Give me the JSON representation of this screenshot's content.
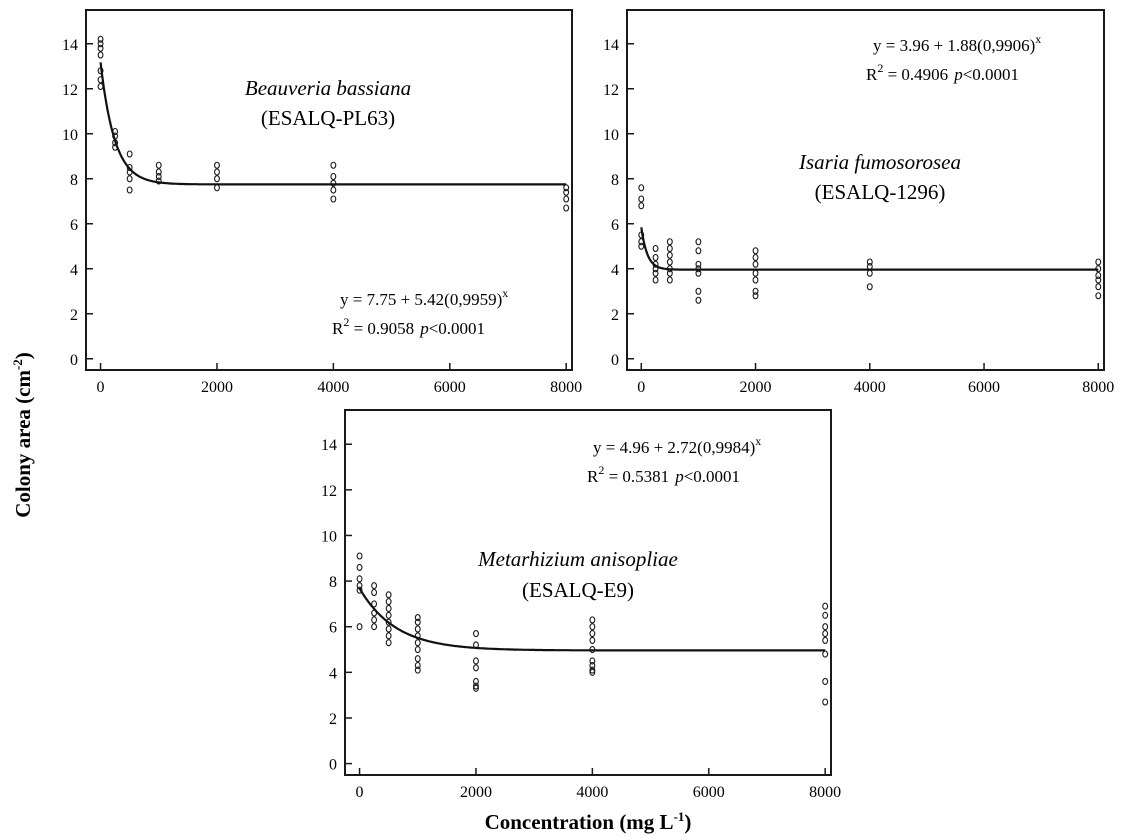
{
  "y_axis_title": "Colony area (cm",
  "y_axis_title_sup": "-2",
  "y_axis_title_end": ")",
  "x_axis_title": "Concentration  (mg L",
  "x_axis_title_sup": "-1",
  "x_axis_title_end": ")",
  "panels": [
    {
      "species": "Beauveria bassiana",
      "isolate": "(ESALQ-PL63)",
      "eq_line1": "y = 7.75 + 5.42(0,9959)",
      "eq_line1_sup": "x",
      "eq_r2_prefix": "R",
      "eq_r2_sup": "2",
      "eq_r2_value": " = 0.9058",
      "eq_p_letter": "p",
      "eq_p_value": "<0.0001"
    },
    {
      "species": "Isaria fumosorosea",
      "isolate": "(ESALQ-1296)",
      "eq_line1": "y = 3.96 + 1.88(0,9906)",
      "eq_line1_sup": "x",
      "eq_r2_prefix": "R",
      "eq_r2_sup": "2",
      "eq_r2_value": " = 0.4906",
      "eq_p_letter": "p",
      "eq_p_value": "<0.0001"
    },
    {
      "species": "Metarhizium anisopliae",
      "isolate": "(ESALQ-E9)",
      "eq_line1": "y = 4.96 + 2.72(0,9984)",
      "eq_line1_sup": "x",
      "eq_r2_prefix": "R",
      "eq_r2_sup": "2",
      "eq_r2_value": " = 0.5381",
      "eq_p_letter": "p",
      "eq_p_value": "<0.0001"
    }
  ],
  "chart_data": [
    {
      "type": "scatter",
      "title": "",
      "xlabel": "Concentration (mg L-1)",
      "ylabel": "Colony area (cm-2)",
      "xlim": [
        -250,
        8100
      ],
      "ylim": [
        -0.5,
        15.5
      ],
      "xticks": [
        0,
        2000,
        4000,
        6000,
        8000
      ],
      "yticks": [
        0,
        2,
        4,
        6,
        8,
        10,
        12,
        14
      ],
      "xtick_labels": [
        "0",
        "2000",
        "4000",
        "6000",
        "8000"
      ],
      "ytick_labels": [
        "0",
        "2",
        "4",
        "6",
        "8",
        "10",
        "12",
        "14"
      ],
      "grid": false,
      "points": [
        [
          0,
          14.2
        ],
        [
          0,
          14.0
        ],
        [
          0,
          13.8
        ],
        [
          0,
          13.5
        ],
        [
          0,
          12.8
        ],
        [
          0,
          12.4
        ],
        [
          0,
          12.1
        ],
        [
          250,
          10.1
        ],
        [
          250,
          9.9
        ],
        [
          250,
          9.6
        ],
        [
          250,
          9.4
        ],
        [
          500,
          9.1
        ],
        [
          500,
          8.5
        ],
        [
          500,
          8.3
        ],
        [
          500,
          8.0
        ],
        [
          500,
          7.5
        ],
        [
          1000,
          8.6
        ],
        [
          1000,
          8.3
        ],
        [
          1000,
          8.1
        ],
        [
          1000,
          7.9
        ],
        [
          2000,
          8.6
        ],
        [
          2000,
          8.3
        ],
        [
          2000,
          8.0
        ],
        [
          2000,
          7.6
        ],
        [
          4000,
          8.6
        ],
        [
          4000,
          8.1
        ],
        [
          4000,
          7.8
        ],
        [
          4000,
          7.5
        ],
        [
          4000,
          7.1
        ],
        [
          8000,
          7.6
        ],
        [
          8000,
          7.4
        ],
        [
          8000,
          7.1
        ],
        [
          8000,
          6.7
        ]
      ],
      "fit": {
        "a": 7.75,
        "b": 5.42,
        "c": 0.9959
      }
    },
    {
      "type": "scatter",
      "title": "",
      "xlabel": "Concentration (mg L-1)",
      "ylabel": "Colony area (cm-2)",
      "xlim": [
        -250,
        8100
      ],
      "ylim": [
        -0.5,
        15.5
      ],
      "xticks": [
        0,
        2000,
        4000,
        6000,
        8000
      ],
      "yticks": [
        0,
        2,
        4,
        6,
        8,
        10,
        12,
        14
      ],
      "xtick_labels": [
        "0",
        "2000",
        "4000",
        "6000",
        "8000"
      ],
      "ytick_labels": [
        "0",
        "2",
        "4",
        "6",
        "8",
        "10",
        "12",
        "14"
      ],
      "grid": false,
      "points": [
        [
          0,
          7.6
        ],
        [
          0,
          7.1
        ],
        [
          0,
          6.8
        ],
        [
          0,
          5.5
        ],
        [
          0,
          5.2
        ],
        [
          0,
          5.0
        ],
        [
          250,
          4.9
        ],
        [
          250,
          4.5
        ],
        [
          250,
          4.2
        ],
        [
          250,
          4.0
        ],
        [
          250,
          3.8
        ],
        [
          250,
          3.5
        ],
        [
          500,
          5.2
        ],
        [
          500,
          4.9
        ],
        [
          500,
          4.6
        ],
        [
          500,
          4.3
        ],
        [
          500,
          4.0
        ],
        [
          500,
          3.8
        ],
        [
          500,
          3.5
        ],
        [
          1000,
          5.2
        ],
        [
          1000,
          4.8
        ],
        [
          1000,
          4.2
        ],
        [
          1000,
          4.0
        ],
        [
          1000,
          3.8
        ],
        [
          1000,
          3.0
        ],
        [
          1000,
          2.6
        ],
        [
          2000,
          4.8
        ],
        [
          2000,
          4.5
        ],
        [
          2000,
          4.2
        ],
        [
          2000,
          3.8
        ],
        [
          2000,
          3.5
        ],
        [
          2000,
          3.0
        ],
        [
          2000,
          2.8
        ],
        [
          4000,
          4.3
        ],
        [
          4000,
          4.1
        ],
        [
          4000,
          3.8
        ],
        [
          4000,
          3.2
        ],
        [
          8000,
          4.3
        ],
        [
          8000,
          4.0
        ],
        [
          8000,
          3.7
        ],
        [
          8000,
          3.5
        ],
        [
          8000,
          3.2
        ],
        [
          8000,
          2.8
        ]
      ],
      "fit": {
        "a": 3.96,
        "b": 1.88,
        "c": 0.9906
      }
    },
    {
      "type": "scatter",
      "title": "",
      "xlabel": "Concentration (mg L-1)",
      "ylabel": "Colony area (cm-2)",
      "xlim": [
        -250,
        8100
      ],
      "ylim": [
        -0.5,
        15.5
      ],
      "xticks": [
        0,
        2000,
        4000,
        6000,
        8000
      ],
      "yticks": [
        0,
        2,
        4,
        6,
        8,
        10,
        12,
        14
      ],
      "xtick_labels": [
        "0",
        "2000",
        "4000",
        "6000",
        "8000"
      ],
      "ytick_labels": [
        "0",
        "2",
        "4",
        "6",
        "8",
        "10",
        "12",
        "14"
      ],
      "grid": false,
      "points": [
        [
          0,
          9.1
        ],
        [
          0,
          8.6
        ],
        [
          0,
          8.1
        ],
        [
          0,
          7.8
        ],
        [
          0,
          7.6
        ],
        [
          0,
          6.0
        ],
        [
          250,
          7.8
        ],
        [
          250,
          7.5
        ],
        [
          250,
          7.0
        ],
        [
          250,
          6.6
        ],
        [
          250,
          6.3
        ],
        [
          250,
          6.0
        ],
        [
          500,
          7.4
        ],
        [
          500,
          7.1
        ],
        [
          500,
          6.8
        ],
        [
          500,
          6.5
        ],
        [
          500,
          6.2
        ],
        [
          500,
          5.9
        ],
        [
          500,
          5.6
        ],
        [
          500,
          5.3
        ],
        [
          1000,
          6.4
        ],
        [
          1000,
          6.2
        ],
        [
          1000,
          5.9
        ],
        [
          1000,
          5.6
        ],
        [
          1000,
          5.3
        ],
        [
          1000,
          5.0
        ],
        [
          1000,
          4.6
        ],
        [
          1000,
          4.3
        ],
        [
          1000,
          4.1
        ],
        [
          2000,
          5.7
        ],
        [
          2000,
          5.2
        ],
        [
          2000,
          4.5
        ],
        [
          2000,
          4.2
        ],
        [
          2000,
          3.6
        ],
        [
          2000,
          3.4
        ],
        [
          2000,
          3.3
        ],
        [
          4000,
          6.3
        ],
        [
          4000,
          6.0
        ],
        [
          4000,
          5.7
        ],
        [
          4000,
          5.4
        ],
        [
          4000,
          5.0
        ],
        [
          4000,
          4.5
        ],
        [
          4000,
          4.3
        ],
        [
          4000,
          4.1
        ],
        [
          4000,
          4.0
        ],
        [
          8000,
          6.9
        ],
        [
          8000,
          6.5
        ],
        [
          8000,
          6.0
        ],
        [
          8000,
          5.7
        ],
        [
          8000,
          5.4
        ],
        [
          8000,
          4.8
        ],
        [
          8000,
          3.6
        ],
        [
          8000,
          2.7
        ]
      ],
      "fit": {
        "a": 4.96,
        "b": 2.72,
        "c": 0.9984
      }
    }
  ]
}
